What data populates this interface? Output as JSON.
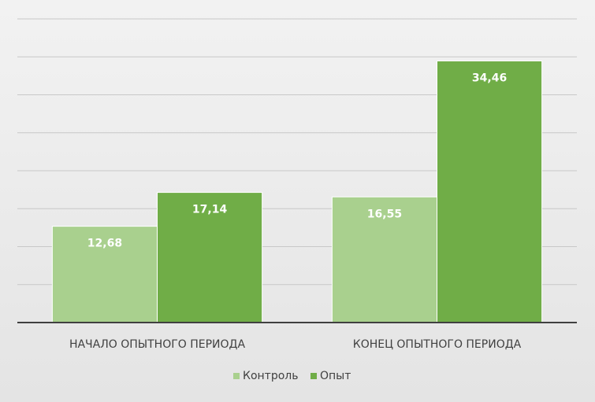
{
  "chart_data": {
    "type": "bar",
    "categories": [
      "НАЧАЛО ОПЫТНОГО ПЕРИОДА",
      "КОНЕЦ ОПЫТНОГО ПЕРИОДА"
    ],
    "series": [
      {
        "name": "Контроль",
        "color": "#a9d08e",
        "values": [
          12.68,
          16.55
        ],
        "value_labels": [
          "12,68",
          "16,55"
        ]
      },
      {
        "name": "Опыт",
        "color": "#70ad47",
        "values": [
          17.14,
          34.46
        ],
        "value_labels": [
          "17,14",
          "34,46"
        ]
      }
    ],
    "ylim": [
      0,
      40
    ],
    "yticks": [
      0,
      5,
      10,
      15,
      20,
      25,
      30,
      35,
      40
    ],
    "grid": true,
    "legend": "bottom"
  }
}
